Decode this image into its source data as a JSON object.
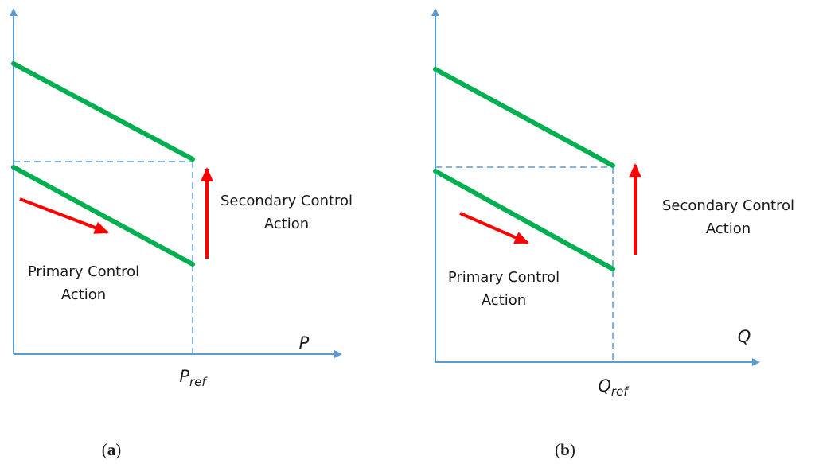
{
  "panels": [
    {
      "axis_label": "P",
      "ref_label": {
        "main": "P",
        "sub": "ref"
      },
      "secondary_label": [
        "Secondary Control",
        "Action"
      ],
      "primary_label": [
        "Primary Control",
        "Action"
      ],
      "caption": [
        "(",
        "a",
        ")"
      ]
    },
    {
      "axis_label": "Q",
      "ref_label": {
        "main": "Q",
        "sub": "ref"
      },
      "secondary_label": [
        "Secondary Control",
        "Action"
      ],
      "primary_label": [
        "Primary Control",
        "Action"
      ],
      "caption": [
        "(",
        "b",
        ")"
      ]
    }
  ]
}
